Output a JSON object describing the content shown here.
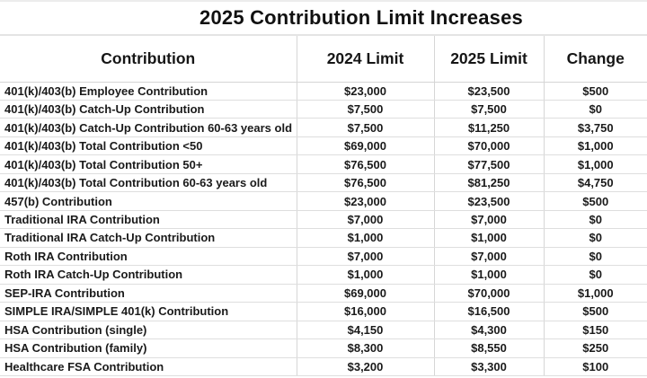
{
  "chart_data": {
    "type": "table",
    "title": "2025 Contribution Limit Increases",
    "columns": [
      "Contribution",
      "2024 Limit",
      "2025 Limit",
      "Change"
    ],
    "rows": [
      [
        "401(k)/403(b) Employee Contribution",
        "$23,000",
        "$23,500",
        "$500"
      ],
      [
        "401(k)/403(b) Catch-Up Contribution",
        "$7,500",
        "$7,500",
        "$0"
      ],
      [
        "401(k)/403(b) Catch-Up Contribution 60-63 years old",
        "$7,500",
        "$11,250",
        "$3,750"
      ],
      [
        "401(k)/403(b) Total Contribution <50",
        "$69,000",
        "$70,000",
        "$1,000"
      ],
      [
        "401(k)/403(b) Total Contribution 50+",
        "$76,500",
        "$77,500",
        "$1,000"
      ],
      [
        "401(k)/403(b) Total Contribution 60-63 years old",
        "$76,500",
        "$81,250",
        "$4,750"
      ],
      [
        "457(b) Contribution",
        "$23,000",
        "$23,500",
        "$500"
      ],
      [
        "Traditional IRA Contribution",
        "$7,000",
        "$7,000",
        "$0"
      ],
      [
        "Traditional IRA Catch-Up Contribution",
        "$1,000",
        "$1,000",
        "$0"
      ],
      [
        "Roth IRA Contribution",
        "$7,000",
        "$7,000",
        "$0"
      ],
      [
        "Roth IRA Catch-Up Contribution",
        "$1,000",
        "$1,000",
        "$0"
      ],
      [
        "SEP-IRA Contribution",
        "$69,000",
        "$70,000",
        "$1,000"
      ],
      [
        "SIMPLE IRA/SIMPLE 401(k) Contribution",
        "$16,000",
        "$16,500",
        "$500"
      ],
      [
        "HSA Contribution (single)",
        "$4,150",
        "$4,300",
        "$150"
      ],
      [
        "HSA Contribution (family)",
        "$8,300",
        "$8,550",
        "$250"
      ],
      [
        "Healthcare FSA Contribution",
        "$3,200",
        "$3,300",
        "$100"
      ]
    ],
    "layout": {
      "grid": "on",
      "header_alignment": "center",
      "value_alignment": "center",
      "label_alignment": "left"
    }
  },
  "colors": {
    "background": "#ffffff",
    "text": "#1a1a1a",
    "gridline": "#d6d6d6"
  }
}
